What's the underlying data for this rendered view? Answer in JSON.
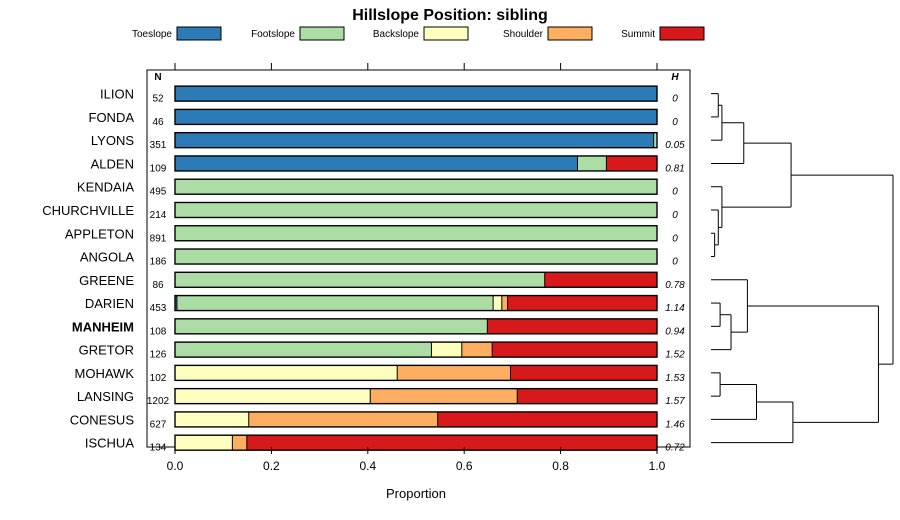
{
  "chart_data": {
    "type": "bar",
    "orientation": "horizontal-stacked",
    "title": "Hillslope Position: sibling",
    "xlabel": "Proportion",
    "ylabel": "",
    "xlim": [
      0,
      1
    ],
    "x_ticks": [
      0.0,
      0.2,
      0.4,
      0.6,
      0.8,
      1.0
    ],
    "x_tick_labels": [
      "0.0",
      "0.2",
      "0.4",
      "0.6",
      "0.8",
      "1.0"
    ],
    "n_header": "N",
    "h_header": "H",
    "legend_position": "top",
    "legend": [
      {
        "name": "Toeslope",
        "color": "#2c7bb6"
      },
      {
        "name": "Footslope",
        "color": "#abdda4"
      },
      {
        "name": "Backslope",
        "color": "#ffffbf"
      },
      {
        "name": "Shoulder",
        "color": "#fdae61"
      },
      {
        "name": "Summit",
        "color": "#d7191c"
      }
    ],
    "categories": [
      {
        "name": "ILION",
        "n": "52",
        "h": "0",
        "bold": false,
        "values": [
          1.0,
          0,
          0,
          0,
          0
        ]
      },
      {
        "name": "FONDA",
        "n": "46",
        "h": "0",
        "bold": false,
        "values": [
          1.0,
          0,
          0,
          0,
          0
        ]
      },
      {
        "name": "LYONS",
        "n": "351",
        "h": "0.05",
        "bold": false,
        "values": [
          0.993,
          0.007,
          0,
          0,
          0
        ]
      },
      {
        "name": "ALDEN",
        "n": "109",
        "h": "0.81",
        "bold": false,
        "values": [
          0.835,
          0.06,
          0,
          0,
          0.105
        ]
      },
      {
        "name": "KENDAIA",
        "n": "495",
        "h": "0",
        "bold": false,
        "values": [
          0,
          1.0,
          0,
          0,
          0
        ]
      },
      {
        "name": "CHURCHVILLE",
        "n": "214",
        "h": "0",
        "bold": false,
        "values": [
          0,
          1.0,
          0,
          0,
          0
        ]
      },
      {
        "name": "APPLETON",
        "n": "891",
        "h": "0",
        "bold": false,
        "values": [
          0,
          1.0,
          0,
          0,
          0
        ]
      },
      {
        "name": "ANGOLA",
        "n": "186",
        "h": "0",
        "bold": false,
        "values": [
          0,
          1.0,
          0,
          0,
          0
        ]
      },
      {
        "name": "GREENE",
        "n": "86",
        "h": "0.78",
        "bold": false,
        "values": [
          0,
          0.767,
          0,
          0,
          0.233
        ]
      },
      {
        "name": "DARIEN",
        "n": "453",
        "h": "1.14",
        "bold": false,
        "values": [
          0.004,
          0.656,
          0.018,
          0.012,
          0.31
        ]
      },
      {
        "name": "MANHEIM",
        "n": "108",
        "h": "0.94",
        "bold": true,
        "values": [
          0,
          0.648,
          0,
          0,
          0.352
        ]
      },
      {
        "name": "GRETOR",
        "n": "126",
        "h": "1.52",
        "bold": false,
        "values": [
          0,
          0.532,
          0.063,
          0.063,
          0.342
        ]
      },
      {
        "name": "MOHAWK",
        "n": "102",
        "h": "1.53",
        "bold": false,
        "values": [
          0,
          0,
          0.461,
          0.235,
          0.304
        ]
      },
      {
        "name": "LANSING",
        "n": "1202",
        "h": "1.57",
        "bold": false,
        "values": [
          0,
          0,
          0.405,
          0.305,
          0.29
        ]
      },
      {
        "name": "CONESUS",
        "n": "627",
        "h": "1.46",
        "bold": false,
        "values": [
          0,
          0,
          0.153,
          0.392,
          0.455
        ]
      },
      {
        "name": "ISCHUA",
        "n": "134",
        "h": "0.72",
        "bold": false,
        "values": [
          0,
          0,
          0.119,
          0.03,
          0.851
        ]
      }
    ],
    "dendrogram": {
      "nodes": [
        {
          "id": "A",
          "left": 0,
          "right": 1,
          "height": 0.04
        },
        {
          "id": "B",
          "left": "A",
          "right": 2,
          "height": 0.06
        },
        {
          "id": "C",
          "left": "B",
          "right": 3,
          "height": 0.18
        },
        {
          "id": "D",
          "left": 6,
          "right": 7,
          "height": 0.02
        },
        {
          "id": "E",
          "left": 5,
          "right": "D",
          "height": 0.04
        },
        {
          "id": "F",
          "left": 4,
          "right": "E",
          "height": 0.06
        },
        {
          "id": "G",
          "left": "C",
          "right": "F",
          "height": 0.44
        },
        {
          "id": "H",
          "left": 9,
          "right": 10,
          "height": 0.05
        },
        {
          "id": "I",
          "left": "H",
          "right": 11,
          "height": 0.11
        },
        {
          "id": "J",
          "left": 8,
          "right": "I",
          "height": 0.2
        },
        {
          "id": "K",
          "left": 12,
          "right": 13,
          "height": 0.05
        },
        {
          "id": "L",
          "left": "K",
          "right": 14,
          "height": 0.25
        },
        {
          "id": "M",
          "left": "L",
          "right": 15,
          "height": 0.45
        },
        {
          "id": "N",
          "left": "J",
          "right": "M",
          "height": 0.92
        },
        {
          "id": "O",
          "left": "G",
          "right": "N",
          "height": 1.0
        }
      ]
    }
  }
}
